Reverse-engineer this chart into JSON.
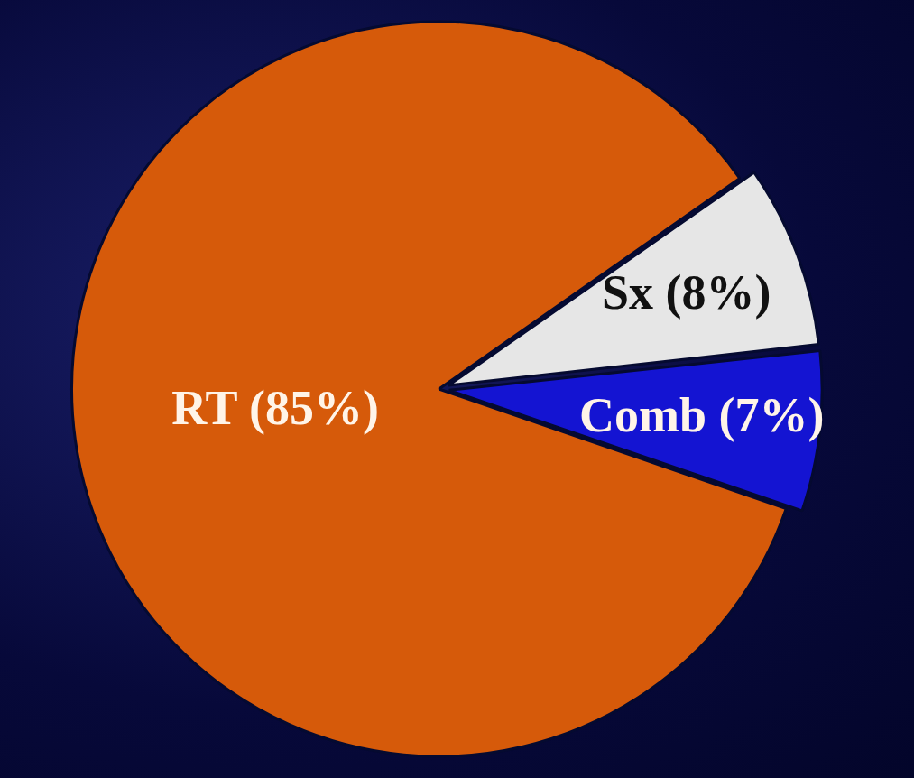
{
  "chart_data": {
    "type": "pie",
    "categories": [
      "RT",
      "Sx",
      "Comb"
    ],
    "values": [
      85,
      8,
      7
    ],
    "colors": [
      "#d65a0a",
      "#e6e6e6",
      "#1414d2"
    ],
    "value_labels": [
      "(85%)",
      "(8%)",
      "(7%)"
    ],
    "data_labels": true
  }
}
